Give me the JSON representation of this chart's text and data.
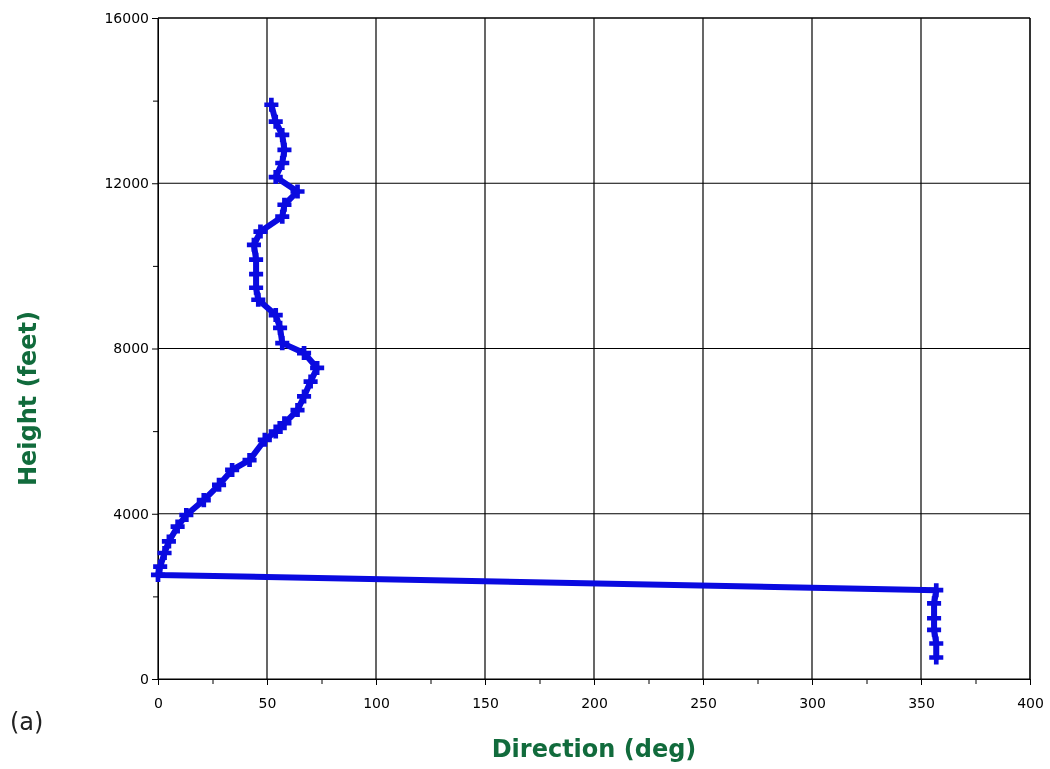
{
  "chart_data": {
    "type": "line",
    "xlabel": "Direction (deg)",
    "ylabel": "Height (feet)",
    "annotations": [
      "(a)"
    ],
    "xlim": [
      0,
      400
    ],
    "xticks": [
      0,
      50,
      100,
      150,
      200,
      250,
      300,
      350,
      400
    ],
    "ylim": [
      0,
      16000
    ],
    "yticks": [
      0,
      4000,
      8000,
      12000,
      16000
    ],
    "grid": true,
    "marker": "cross",
    "line_style": "solid",
    "series": [
      {
        "color": "#0a0ae0",
        "x": [
          52,
          54,
          57,
          58,
          57,
          54,
          64,
          58,
          57,
          47,
          44,
          45,
          45,
          45,
          46,
          54,
          56,
          57,
          67,
          73,
          70,
          67,
          64,
          58,
          54,
          49,
          42,
          34,
          28,
          21,
          13,
          9,
          5,
          3,
          1,
          0,
          357,
          356,
          356,
          356,
          357,
          357
        ],
        "values": [
          13900,
          13490,
          13170,
          12810,
          12490,
          12150,
          11800,
          11480,
          11190,
          10830,
          10510,
          10150,
          9800,
          9470,
          9180,
          8810,
          8500,
          8130,
          7890,
          7530,
          7200,
          6840,
          6510,
          6190,
          5990,
          5790,
          5300,
          5060,
          4700,
          4330,
          3970,
          3690,
          3330,
          3050,
          2720,
          2520,
          2150,
          1830,
          1470,
          1190,
          860,
          520
        ]
      }
    ]
  }
}
